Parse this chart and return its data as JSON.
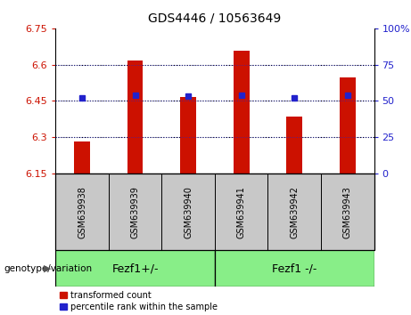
{
  "title": "GDS4446 / 10563649",
  "samples": [
    "GSM639938",
    "GSM639939",
    "GSM639940",
    "GSM639941",
    "GSM639942",
    "GSM639943"
  ],
  "red_values": [
    6.28,
    6.615,
    6.467,
    6.658,
    6.385,
    6.548
  ],
  "blue_values": [
    6.462,
    6.472,
    6.468,
    6.472,
    6.463,
    6.472
  ],
  "y_min": 6.15,
  "y_max": 6.75,
  "y_ticks": [
    6.15,
    6.3,
    6.45,
    6.6,
    6.75
  ],
  "right_y_ticks": [
    0,
    25,
    50,
    75,
    100
  ],
  "right_y_labels": [
    "0",
    "25",
    "50",
    "75",
    "100%"
  ],
  "group1_label": "Fezf1+/-",
  "group2_label": "Fezf1 -/-",
  "genotype_label": "genotype/variation",
  "legend_red": "transformed count",
  "legend_blue": "percentile rank within the sample",
  "bar_color": "#cc1100",
  "marker_color": "#2222cc",
  "group_bg_color": "#88ee88",
  "tick_label_bg": "#c8c8c8",
  "bar_width": 0.3
}
